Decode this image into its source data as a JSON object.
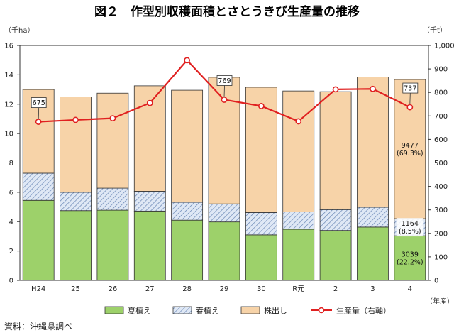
{
  "title": "図２　作型別収穫面積とさとうきび生産量の推移",
  "source": "資料：沖縄県調べ",
  "chart_data": {
    "type": "bar",
    "stacked": true,
    "categories": [
      "H24",
      "25",
      "26",
      "27",
      "28",
      "29",
      "30",
      "R元",
      "2",
      "3",
      "4"
    ],
    "xlabel": "（年産）",
    "ylabel_left": "（千ha）",
    "ylabel_right": "（千t）",
    "ylim_left": [
      0,
      16
    ],
    "ylim_right": [
      0,
      1000
    ],
    "yticks_left": [
      "0",
      "2",
      "4",
      "6",
      "8",
      "10",
      "12",
      "14",
      "16"
    ],
    "yticks_right": [
      "0",
      "100",
      "200",
      "300",
      "400",
      "500",
      "600",
      "700",
      "800",
      "900",
      "1,000"
    ],
    "grid": false,
    "legend_position": "bottom",
    "series": [
      {
        "name": "夏植え",
        "axis": "left",
        "color": "#9dd16a",
        "values": [
          5.45,
          4.75,
          4.78,
          4.72,
          4.1,
          3.98,
          3.1,
          3.48,
          3.4,
          3.63,
          3.039
        ]
      },
      {
        "name": "春植え",
        "axis": "left",
        "color": "#c9d8ec",
        "values": [
          1.85,
          1.25,
          1.5,
          1.35,
          1.22,
          1.23,
          1.52,
          1.18,
          1.42,
          1.35,
          1.164
        ]
      },
      {
        "name": "株出し",
        "axis": "left",
        "color": "#f7d3a8",
        "values": [
          5.7,
          6.5,
          6.47,
          7.18,
          7.63,
          8.62,
          8.53,
          8.24,
          8.03,
          8.87,
          9.477
        ]
      },
      {
        "name": "生産量（右軸）",
        "axis": "right",
        "color": "#e02020",
        "values": [
          675,
          683,
          690,
          755,
          937,
          769,
          742,
          677,
          813,
          815,
          737
        ]
      }
    ],
    "annotations": [
      {
        "category": "4",
        "series": "株出し",
        "lines": [
          "9477",
          "(69.3%)"
        ]
      },
      {
        "category": "4",
        "series": "春植え",
        "lines": [
          "1164",
          "(8.5%)"
        ]
      },
      {
        "category": "4",
        "series": "夏植え",
        "lines": [
          "3039",
          "(22.2%)"
        ]
      }
    ],
    "point_labels": [
      {
        "category": "H24",
        "text": "675"
      },
      {
        "category": "29",
        "text": "769"
      },
      {
        "category": "4",
        "text": "737"
      }
    ]
  }
}
